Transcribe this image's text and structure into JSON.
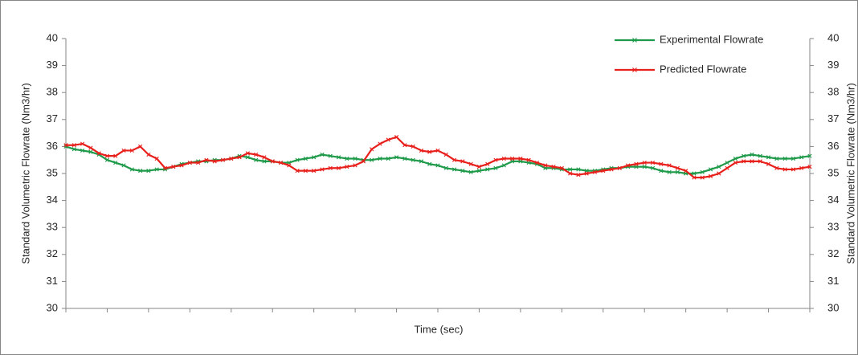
{
  "chart_data": {
    "type": "line",
    "x_label": "Time (sec)",
    "y_label": "Standard Volumetric Flowrate (Nm3/hr)",
    "y2_label": "Standard Volumetric Flowrate (Nm3/hr)",
    "categories": [
      null,
      null,
      null,
      null,
      null,
      null,
      null,
      null,
      null,
      null,
      null,
      null,
      null,
      null,
      null,
      null,
      null,
      null,
      null,
      null,
      null,
      null,
      null,
      null,
      null,
      null,
      null,
      null,
      null,
      null,
      null,
      null,
      null,
      null,
      null,
      null,
      null,
      null,
      null,
      null,
      null,
      null,
      null,
      null,
      null,
      null,
      null,
      null,
      null,
      null,
      null,
      null,
      null,
      null,
      null,
      null,
      null,
      null,
      null,
      null,
      null,
      null,
      null,
      null,
      null,
      null,
      null,
      null,
      null,
      null,
      null,
      null,
      null,
      null,
      null,
      null,
      null,
      null,
      null,
      null,
      null,
      null,
      null,
      null,
      null,
      null,
      null,
      null,
      null,
      null,
      null
    ],
    "series": [
      {
        "name": "Experimental Flowrate",
        "color": "#1f9a4a",
        "values": [
          36.0,
          35.9,
          35.85,
          35.8,
          35.7,
          35.5,
          35.4,
          35.3,
          35.15,
          35.1,
          35.1,
          35.15,
          35.15,
          35.25,
          35.35,
          35.4,
          35.45,
          35.45,
          35.5,
          35.5,
          35.55,
          35.65,
          35.6,
          35.5,
          35.45,
          35.45,
          35.4,
          35.4,
          35.5,
          35.55,
          35.6,
          35.7,
          35.65,
          35.6,
          35.55,
          35.55,
          35.5,
          35.5,
          35.55,
          35.55,
          35.6,
          35.55,
          35.5,
          35.45,
          35.35,
          35.3,
          35.2,
          35.15,
          35.1,
          35.05,
          35.1,
          35.15,
          35.2,
          35.3,
          35.45,
          35.45,
          35.4,
          35.35,
          35.2,
          35.2,
          35.15,
          35.15,
          35.15,
          35.1,
          35.1,
          35.15,
          35.2,
          35.2,
          35.25,
          35.25,
          35.25,
          35.2,
          35.1,
          35.05,
          35.05,
          35.0,
          35.0,
          35.05,
          35.15,
          35.25,
          35.4,
          35.55,
          35.65,
          35.7,
          35.65,
          35.6,
          35.55,
          35.55,
          35.55,
          35.6,
          35.65
        ]
      },
      {
        "name": "Predicted Flowrate",
        "color": "#e8201c",
        "values": [
          36.05,
          36.05,
          36.1,
          35.95,
          35.75,
          35.65,
          35.65,
          35.85,
          35.85,
          36.0,
          35.7,
          35.55,
          35.2,
          35.25,
          35.3,
          35.4,
          35.4,
          35.5,
          35.45,
          35.5,
          35.55,
          35.6,
          35.75,
          35.7,
          35.6,
          35.45,
          35.4,
          35.3,
          35.1,
          35.1,
          35.1,
          35.15,
          35.2,
          35.2,
          35.25,
          35.3,
          35.45,
          35.9,
          36.1,
          36.25,
          36.35,
          36.05,
          36.0,
          35.85,
          35.8,
          35.85,
          35.7,
          35.5,
          35.45,
          35.35,
          35.25,
          35.35,
          35.5,
          35.55,
          35.55,
          35.55,
          35.5,
          35.4,
          35.3,
          35.25,
          35.2,
          35.0,
          34.95,
          35.0,
          35.05,
          35.1,
          35.15,
          35.2,
          35.3,
          35.35,
          35.4,
          35.4,
          35.35,
          35.3,
          35.2,
          35.1,
          34.85,
          34.85,
          34.9,
          35.0,
          35.2,
          35.4,
          35.45,
          35.45,
          35.45,
          35.35,
          35.2,
          35.15,
          35.15,
          35.2,
          35.25
        ]
      }
    ],
    "ylim": [
      30,
      40
    ],
    "yticks": [
      30,
      31,
      32,
      33,
      34,
      35,
      36,
      37,
      38,
      39,
      40
    ],
    "y2lim": [
      30,
      40
    ],
    "y2ticks": [
      30,
      31,
      32,
      33,
      34,
      35,
      36,
      37,
      38,
      39,
      40
    ],
    "grid": false,
    "legend": "upper right"
  }
}
